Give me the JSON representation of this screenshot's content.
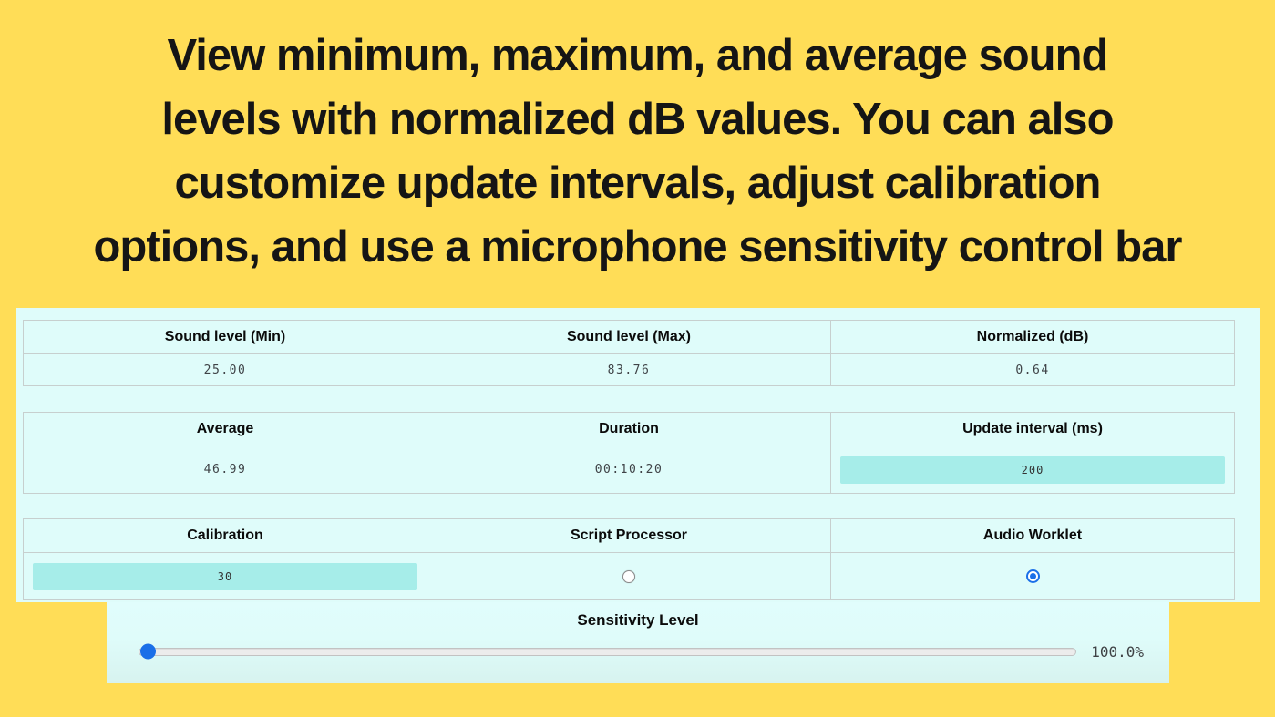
{
  "colors": {
    "background": "#FFDD57",
    "panel": "#DFFCFA",
    "panel_grad_bottom": "#D7F3EF",
    "input": "#A6EDE9",
    "accent_blue": "#1A6FE8",
    "border": "#C7CFCE",
    "value_text": "#3F4347",
    "heading_text": "#151515"
  },
  "heading": {
    "text": "View minimum, maximum, and average sound\nlevels with normalized dB values. You can also\ncustomize update intervals, adjust calibration\noptions, and use a microphone sensitivity control bar"
  },
  "stats_table": {
    "row1": {
      "min": {
        "label": "Sound level (Min)",
        "value": "25.00"
      },
      "max": {
        "label": "Sound level (Max)",
        "value": "83.76"
      },
      "normalized": {
        "label": "Normalized (dB)",
        "value": "0.64"
      }
    },
    "row2": {
      "average": {
        "label": "Average",
        "value": "46.99"
      },
      "duration": {
        "label": "Duration",
        "value": "00:10:20"
      },
      "update_interval": {
        "label": "Update interval (ms)",
        "value": "200"
      }
    },
    "row3": {
      "calibration": {
        "label": "Calibration",
        "value": "30"
      },
      "script_processor": {
        "label": "Script Processor",
        "checked": false
      },
      "audio_worklet": {
        "label": "Audio Worklet",
        "checked": true
      }
    }
  },
  "sensitivity": {
    "label": "Sensitivity Level",
    "value_display": "100.0%"
  }
}
